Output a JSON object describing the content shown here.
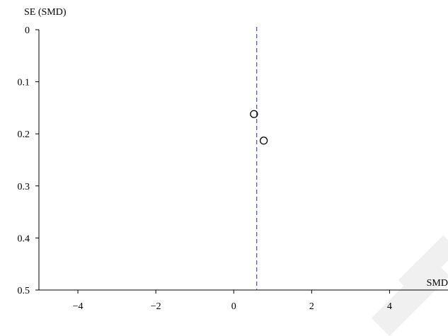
{
  "chart_data": {
    "type": "scatter",
    "subtype": "funnel-plot",
    "xlabel": "SMD",
    "ylabel": "SE (SMD)",
    "x_ticks": [
      -4,
      -2,
      0,
      2,
      4
    ],
    "y_ticks": [
      0,
      0.1,
      0.2,
      0.3,
      0.4,
      0.5
    ],
    "x_tick_labels": [
      "−4",
      "−2",
      "0",
      "2",
      "4"
    ],
    "y_tick_labels": [
      "0",
      "0.1",
      "0.2",
      "0.3",
      "0.4",
      "0.5"
    ],
    "xlim": [
      -5,
      5.5
    ],
    "ylim": [
      0,
      0.5
    ],
    "y_inverted": true,
    "grid": false,
    "points": [
      {
        "x": 0.52,
        "y": 0.162
      },
      {
        "x": 0.77,
        "y": 0.213
      }
    ],
    "reference_line": {
      "x": 0.59,
      "style": "dashed",
      "color": "#4b4ba8"
    },
    "marker": "open-circle"
  }
}
